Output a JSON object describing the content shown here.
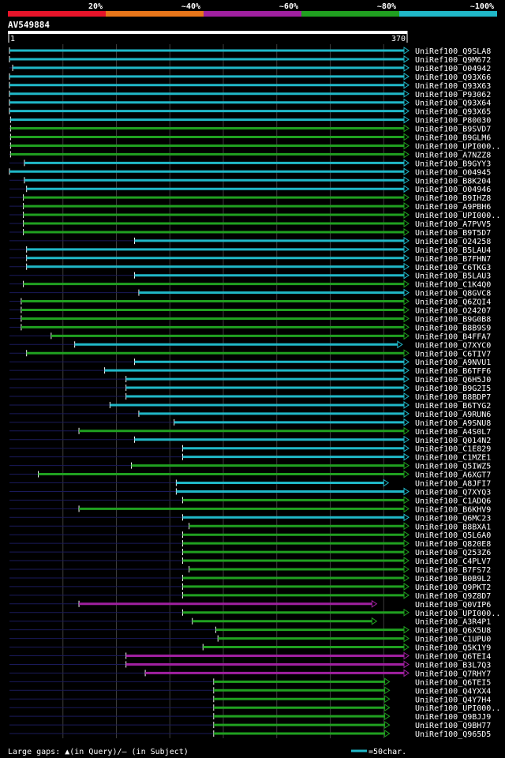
{
  "chart_data": {
    "type": "alignment",
    "query_id": "AV549884",
    "query_length": 370,
    "scale_labels": [
      "20%",
      "~40%",
      "~60%",
      "~80%",
      "~100%"
    ],
    "scale_colors": [
      "#e8142a",
      "#e8761a",
      "#a020a0",
      "#20a020",
      "#20b8c8"
    ],
    "ruler_start": "1",
    "ruler_end": "370",
    "legend_gaps": "Large gaps: ▲(in Query)/– (in Subject)",
    "legend_scale": "=50char.",
    "hits": [
      {
        "name": "UniRef100_Q9SLA8",
        "start": 1,
        "end": 370,
        "color": "#20b8c8"
      },
      {
        "name": "UniRef100_Q9M672",
        "start": 1,
        "end": 370,
        "color": "#20b8c8"
      },
      {
        "name": "UniRef100_O04942",
        "start": 4,
        "end": 370,
        "color": "#20b8c8"
      },
      {
        "name": "UniRef100_Q93X66",
        "start": 1,
        "end": 370,
        "color": "#20b8c8"
      },
      {
        "name": "UniRef100_Q93X63",
        "start": 1,
        "end": 370,
        "color": "#20b8c8"
      },
      {
        "name": "UniRef100_P93062",
        "start": 1,
        "end": 370,
        "color": "#20b8c8"
      },
      {
        "name": "UniRef100_Q93X64",
        "start": 1,
        "end": 370,
        "color": "#20b8c8"
      },
      {
        "name": "UniRef100_Q93X65",
        "start": 1,
        "end": 370,
        "color": "#20b8c8"
      },
      {
        "name": "UniRef100_P80030",
        "start": 2,
        "end": 370,
        "color": "#20b8c8"
      },
      {
        "name": "UniRef100_B9SVD7",
        "start": 2,
        "end": 370,
        "color": "#20a020"
      },
      {
        "name": "UniRef100_B9GLM6",
        "start": 2,
        "end": 370,
        "color": "#20a020"
      },
      {
        "name": "UniRef100_UPI000..",
        "start": 2,
        "end": 370,
        "color": "#20a020"
      },
      {
        "name": "UniRef100_A7NZZ8",
        "start": 2,
        "end": 370,
        "color": "#20a020"
      },
      {
        "name": "UniRef100_B9GYY3",
        "start": 15,
        "end": 370,
        "color": "#20b8c8"
      },
      {
        "name": "UniRef100_O04945",
        "start": 1,
        "end": 370,
        "color": "#20b8c8"
      },
      {
        "name": "UniRef100_B8K204",
        "start": 15,
        "end": 370,
        "color": "#20b8c8"
      },
      {
        "name": "UniRef100_O04946",
        "start": 17,
        "end": 370,
        "color": "#20b8c8"
      },
      {
        "name": "UniRef100_B9IHZ8",
        "start": 14,
        "end": 370,
        "color": "#20a020"
      },
      {
        "name": "UniRef100_A9PBH6",
        "start": 14,
        "end": 370,
        "color": "#20a020"
      },
      {
        "name": "UniRef100_UPI000..",
        "start": 14,
        "end": 370,
        "color": "#20a020"
      },
      {
        "name": "UniRef100_A7PVV5",
        "start": 14,
        "end": 370,
        "color": "#20a020"
      },
      {
        "name": "UniRef100_B9T5D7",
        "start": 14,
        "end": 370,
        "color": "#20a020"
      },
      {
        "name": "UniRef100_O24258",
        "start": 118,
        "end": 370,
        "color": "#20b8c8"
      },
      {
        "name": "UniRef100_B5LAU4",
        "start": 17,
        "end": 370,
        "color": "#20b8c8"
      },
      {
        "name": "UniRef100_B7FHN7",
        "start": 17,
        "end": 370,
        "color": "#20b8c8"
      },
      {
        "name": "UniRef100_C6TKG3",
        "start": 17,
        "end": 370,
        "color": "#20b8c8"
      },
      {
        "name": "UniRef100_B5LAU3",
        "start": 118,
        "end": 370,
        "color": "#20b8c8"
      },
      {
        "name": "UniRef100_C1K4Q0",
        "start": 14,
        "end": 370,
        "color": "#20a020"
      },
      {
        "name": "UniRef100_Q8GVC8",
        "start": 122,
        "end": 370,
        "color": "#20b8c8"
      },
      {
        "name": "UniRef100_Q6ZQI4",
        "start": 12,
        "end": 370,
        "color": "#20a020"
      },
      {
        "name": "UniRef100_O24207",
        "start": 12,
        "end": 370,
        "color": "#20a020"
      },
      {
        "name": "UniRef100_B9G0B8",
        "start": 12,
        "end": 370,
        "color": "#20a020"
      },
      {
        "name": "UniRef100_B8B9S9",
        "start": 12,
        "end": 370,
        "color": "#20a020"
      },
      {
        "name": "UniRef100_B4FFA7",
        "start": 40,
        "end": 370,
        "color": "#20a020"
      },
      {
        "name": "UniRef100_Q7XYC0",
        "start": 62,
        "end": 364,
        "color": "#20b8c8"
      },
      {
        "name": "UniRef100_C6TIV7",
        "start": 17,
        "end": 370,
        "color": "#20a020"
      },
      {
        "name": "UniRef100_A9NVU1",
        "start": 118,
        "end": 370,
        "color": "#20b8c8"
      },
      {
        "name": "UniRef100_B6TFF6",
        "start": 90,
        "end": 370,
        "color": "#20b8c8"
      },
      {
        "name": "UniRef100_Q6H5J0",
        "start": 110,
        "end": 370,
        "color": "#20b8c8"
      },
      {
        "name": "UniRef100_B9G2I5",
        "start": 110,
        "end": 370,
        "color": "#20b8c8"
      },
      {
        "name": "UniRef100_B8BDP7",
        "start": 110,
        "end": 370,
        "color": "#20b8c8"
      },
      {
        "name": "UniRef100_B6TYG2",
        "start": 95,
        "end": 370,
        "color": "#20b8c8"
      },
      {
        "name": "UniRef100_A9RUN6",
        "start": 122,
        "end": 370,
        "color": "#20b8c8"
      },
      {
        "name": "UniRef100_A9SNU8",
        "start": 155,
        "end": 370,
        "color": "#20b8c8"
      },
      {
        "name": "UniRef100_A4S0L7",
        "start": 66,
        "end": 370,
        "color": "#20a020"
      },
      {
        "name": "UniRef100_Q014N2",
        "start": 118,
        "end": 370,
        "color": "#20b8c8"
      },
      {
        "name": "UniRef100_C1E829",
        "start": 163,
        "end": 370,
        "color": "#20b8c8"
      },
      {
        "name": "UniRef100_C1MZE1",
        "start": 163,
        "end": 370,
        "color": "#20b8c8"
      },
      {
        "name": "UniRef100_Q5IWZ5",
        "start": 115,
        "end": 370,
        "color": "#20a020"
      },
      {
        "name": "UniRef100_A6XGT7",
        "start": 28,
        "end": 370,
        "color": "#20a020"
      },
      {
        "name": "UniRef100_A8JFI7",
        "start": 157,
        "end": 351,
        "color": "#20b8c8"
      },
      {
        "name": "UniRef100_Q7XYQ3",
        "start": 157,
        "end": 370,
        "color": "#20b8c8"
      },
      {
        "name": "UniRef100_C1ADQ6",
        "start": 163,
        "end": 370,
        "color": "#20a020"
      },
      {
        "name": "UniRef100_B6KHV9",
        "start": 66,
        "end": 370,
        "color": "#20a020"
      },
      {
        "name": "UniRef100_Q6MC23",
        "start": 163,
        "end": 370,
        "color": "#20b8c8"
      },
      {
        "name": "UniRef100_B8BXA1",
        "start": 169,
        "end": 370,
        "color": "#20a020"
      },
      {
        "name": "UniRef100_Q5L6A0",
        "start": 163,
        "end": 370,
        "color": "#20a020"
      },
      {
        "name": "UniRef100_Q820E8",
        "start": 163,
        "end": 370,
        "color": "#20a020"
      },
      {
        "name": "UniRef100_Q253Z6",
        "start": 163,
        "end": 370,
        "color": "#20a020"
      },
      {
        "name": "UniRef100_C4PLV7",
        "start": 163,
        "end": 370,
        "color": "#20a020"
      },
      {
        "name": "UniRef100_B7FS72",
        "start": 169,
        "end": 370,
        "color": "#20a020"
      },
      {
        "name": "UniRef100_B0B9L2",
        "start": 163,
        "end": 370,
        "color": "#20a020"
      },
      {
        "name": "UniRef100_Q9PKT2",
        "start": 163,
        "end": 370,
        "color": "#20a020"
      },
      {
        "name": "UniRef100_Q9Z8D7",
        "start": 163,
        "end": 370,
        "color": "#20a020"
      },
      {
        "name": "UniRef100_Q0VIP6",
        "start": 66,
        "end": 340,
        "color": "#a020a0"
      },
      {
        "name": "UniRef100_UPI000..",
        "start": 163,
        "end": 370,
        "color": "#20a020"
      },
      {
        "name": "UniRef100_A3R4P1",
        "start": 172,
        "end": 340,
        "color": "#20a020"
      },
      {
        "name": "UniRef100_Q6X5U8",
        "start": 194,
        "end": 370,
        "color": "#20a020"
      },
      {
        "name": "UniRef100_C1UPU0",
        "start": 196,
        "end": 370,
        "color": "#20a020"
      },
      {
        "name": "UniRef100_Q5K1Y9",
        "start": 182,
        "end": 370,
        "color": "#20a020"
      },
      {
        "name": "UniRef100_Q6TEI4",
        "start": 110,
        "end": 370,
        "color": "#a020a0"
      },
      {
        "name": "UniRef100_B3L7Q3",
        "start": 110,
        "end": 370,
        "color": "#a020a0"
      },
      {
        "name": "UniRef100_Q7RHY7",
        "start": 128,
        "end": 370,
        "color": "#a020a0"
      },
      {
        "name": "UniRef100_Q6TEI5",
        "start": 192,
        "end": 352,
        "color": "#20a020"
      },
      {
        "name": "UniRef100_Q4YXX4",
        "start": 192,
        "end": 352,
        "color": "#20a020"
      },
      {
        "name": "UniRef100_Q4Y7H4",
        "start": 192,
        "end": 352,
        "color": "#20a020"
      },
      {
        "name": "UniRef100_UPI000..",
        "start": 192,
        "end": 352,
        "color": "#20a020"
      },
      {
        "name": "UniRef100_Q9BJJ9",
        "start": 192,
        "end": 352,
        "color": "#20a020"
      },
      {
        "name": "UniRef100_Q9BH77",
        "start": 192,
        "end": 352,
        "color": "#20a020"
      },
      {
        "name": "UniRef100_Q965D5",
        "start": 192,
        "end": 352,
        "color": "#20a020"
      }
    ]
  }
}
